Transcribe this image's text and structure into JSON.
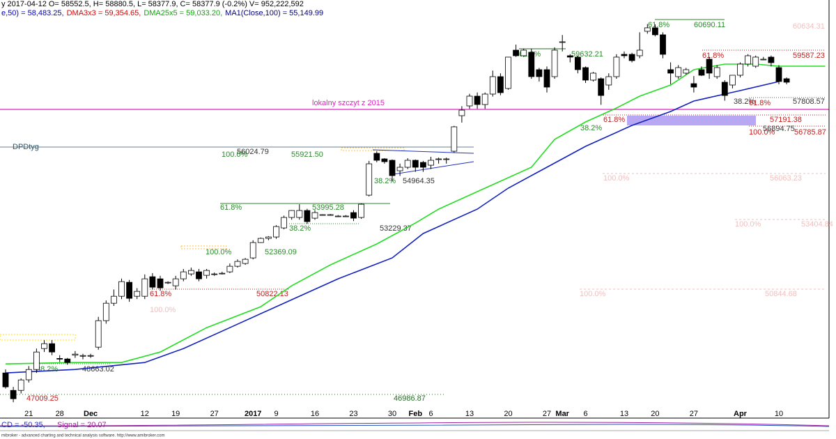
{
  "header": {
    "line1": "y 2017-04-12 O= 58552.5, H= 58880.5, L= 58377.9, C= 58377.9 (-0.2%) V= 952,222,592",
    "line2": [
      {
        "text": "e,50) = 58,483.25,",
        "color": "#0000c0"
      },
      {
        "text": "DMA3x3 = 59,354.65,",
        "color": "#e00000"
      },
      {
        "text": "DMA25x5 = 59,033.20,",
        "color": "#00b000"
      },
      {
        "text": "MA1(Close,100) = 55,149.99",
        "color": "#000080"
      }
    ]
  },
  "chart_data": {
    "type": "candlestick",
    "categories": [
      null,
      null,
      null,
      "21",
      null,
      null,
      null,
      "28",
      null,
      null,
      null,
      "Dec",
      null,
      null,
      null,
      null,
      null,
      null,
      "12",
      null,
      null,
      null,
      "19",
      null,
      null,
      null,
      null,
      "27",
      null,
      null,
      null,
      null,
      "2017",
      null,
      null,
      "9",
      null,
      null,
      null,
      null,
      "16",
      null,
      null,
      null,
      null,
      "23",
      null,
      null,
      null,
      null,
      "30",
      null,
      null,
      "Feb",
      null,
      "6",
      null,
      null,
      null,
      null,
      "13",
      null,
      null,
      null,
      null,
      "20",
      null,
      null,
      null,
      null,
      "27",
      null,
      "Mar",
      null,
      null,
      "6",
      null,
      null,
      null,
      null,
      "13",
      null,
      null,
      null,
      "20",
      null,
      null,
      null,
      null,
      "27",
      null,
      null,
      null,
      null,
      null,
      "Apr",
      null,
      null,
      null,
      null,
      "10",
      null
    ],
    "open": [
      47950,
      47313,
      47313,
      47700,
      48077,
      48842,
      49020,
      48480,
      48460,
      48600,
      48560,
      48580,
      48893,
      49861,
      50498,
      50753,
      51263,
      50753,
      50753,
      51467,
      51390,
      51263,
      51135,
      51390,
      51569,
      51645,
      51518,
      51569,
      51594,
      51645,
      51849,
      51951,
      52154,
      52715,
      52868,
      52919,
      53250,
      53633,
      53633,
      53887,
      53607,
      53735,
      53735,
      53684,
      53684,
      53811,
      53633,
      54448,
      55976,
      55773,
      55722,
      55340,
      55467,
      55722,
      55645,
      55543,
      55773,
      55773,
      56053,
      57352,
      57709,
      58066,
      57760,
      58142,
      58779,
      58346,
      59747,
      59543,
      59671,
      59034,
      59034,
      58779,
      60053,
      59543,
      59493,
      59110,
      58652,
      58703,
      58473,
      58779,
      59594,
      59594,
      59543,
      60436,
      60563,
      60308,
      59034,
      58779,
      58907,
      58524,
      59034,
      59416,
      58779,
      58575,
      58473,
      58830,
      59238,
      59161,
      59416,
      59493,
      59110,
      58703
    ],
    "high": [
      48080,
      47440,
      47750,
      48200,
      48842,
      49150,
      49150,
      48600,
      48500,
      48750,
      48650,
      48650,
      50000,
      50600,
      51000,
      51400,
      51350,
      51050,
      51550,
      51600,
      51500,
      51300,
      51500,
      51750,
      51800,
      51750,
      51750,
      51620,
      51650,
      51950,
      52100,
      52150,
      52800,
      52900,
      52950,
      53350,
      53700,
      53900,
      54116,
      53950,
      53900,
      53750,
      53760,
      53720,
      53720,
      53900,
      54150,
      55700,
      56050,
      55800,
      55750,
      55600,
      55800,
      55750,
      55700,
      55850,
      55820,
      55820,
      56980,
      57700,
      58150,
      58200,
      58200,
      59000,
      58900,
      59500,
      59950,
      59800,
      59800,
      59100,
      59150,
      59850,
      60300,
      59600,
      59550,
      59150,
      58950,
      58750,
      58900,
      59600,
      59700,
      59650,
      60400,
      60700,
      60690,
      60400,
      59300,
      59200,
      59100,
      58800,
      59150,
      59500,
      59200,
      58650,
      58800,
      59300,
      59600,
      59550,
      59500,
      59550,
      59200,
      58750
    ],
    "low": [
      47380,
      46880,
      47200,
      47600,
      47950,
      48715,
      48600,
      48350,
      48250,
      48500,
      48450,
      48500,
      48800,
      49750,
      50400,
      50650,
      50550,
      50650,
      50650,
      51000,
      50950,
      51200,
      51000,
      51300,
      51500,
      51300,
      51400,
      51500,
      51550,
      51600,
      51800,
      51900,
      52100,
      52700,
      52800,
      52850,
      53200,
      53550,
      53550,
      53400,
      53550,
      53700,
      53700,
      53650,
      53650,
      53500,
      53580,
      54400,
      55650,
      55600,
      54950,
      55150,
      55400,
      55300,
      55300,
      55400,
      55600,
      55600,
      56000,
      57100,
      57600,
      57600,
      57600,
      58050,
      58100,
      58300,
      59500,
      59500,
      58700,
      58600,
      58200,
      58700,
      59700,
      59300,
      58900,
      58550,
      58600,
      57750,
      58300,
      58700,
      59450,
      59300,
      59450,
      60350,
      60250,
      59450,
      58500,
      58700,
      58850,
      58200,
      58800,
      58700,
      58700,
      57900,
      58350,
      58750,
      59150,
      59100,
      59380,
      59150,
      58500,
      58500
    ],
    "close": [
      47441,
      47007,
      47695,
      48077,
      48715,
      49020,
      48715,
      48460,
      48332,
      48638,
      48587,
      48587,
      49861,
      50498,
      50753,
      51288,
      50677,
      50931,
      51390,
      51084,
      51059,
      51263,
      51390,
      51645,
      51696,
      51390,
      51696,
      51569,
      51594,
      51849,
      52027,
      52104,
      52715,
      52868,
      52919,
      53301,
      53633,
      53887,
      53887,
      53480,
      53811,
      53735,
      53735,
      53684,
      53684,
      53607,
      54116,
      55594,
      55722,
      55671,
      55161,
      55467,
      55722,
      55467,
      55467,
      55722,
      55773,
      55773,
      56945,
      57556,
      58066,
      57760,
      58142,
      58779,
      58193,
      59493,
      59543,
      59747,
      58779,
      58779,
      58397,
      59747,
      60053,
      59493,
      59034,
      58652,
      58907,
      58091,
      58779,
      59493,
      59543,
      59365,
      59747,
      60563,
      60308,
      59594,
      58907,
      59110,
      59034,
      58397,
      58830,
      58907,
      59110,
      58091,
      58830,
      59238,
      59543,
      59493,
      59416,
      59289,
      58601,
      58575
    ],
    "ylim": [
      46300,
      61580
    ],
    "up_color": "#ffffff",
    "down_color": "#000000",
    "lines": [
      {
        "color": "#22dd22",
        "x": [
          0,
          9,
          15,
          20,
          26,
          33,
          37,
          42,
          48,
          53,
          56,
          62,
          68,
          71,
          75,
          79,
          82,
          86,
          89,
          93,
          97,
          100,
          106
        ],
        "values": [
          48282,
          48332,
          48332,
          48715,
          49606,
          50371,
          51135,
          51900,
          52664,
          53429,
          53938,
          54703,
          55467,
          56486,
          57123,
          57633,
          58066,
          58473,
          59034,
          59238,
          59238,
          59161,
          59161
        ]
      },
      {
        "color": "#1020c0",
        "x": [
          0,
          9,
          18,
          23,
          29,
          37,
          43,
          50,
          54,
          61,
          65,
          70,
          75,
          81,
          86,
          89,
          95,
          100
        ],
        "values": [
          47950,
          48077,
          48332,
          48842,
          49606,
          50626,
          51390,
          52154,
          53046,
          53938,
          54703,
          55467,
          56231,
          56996,
          57505,
          57888,
          58270,
          58601
        ]
      }
    ],
    "annotations": [
      {
        "text": "61.8%",
        "color": "#2a8a2a"
      },
      {
        "text": "60690.11",
        "color": "#2a8a2a"
      },
      {
        "text": "60634.31",
        "color": "#f0c0c0"
      },
      {
        "text": "61.8%",
        "color": "#2a8a2a"
      },
      {
        "text": "59632.21",
        "color": "#2a8a2a"
      },
      {
        "text": "61.8%",
        "color": "#c02020"
      },
      {
        "text": "59587.23",
        "color": "#c02020"
      },
      {
        "text": "lokalny szczyt z 2015",
        "color": "#e020c0"
      },
      {
        "text": "38.2%",
        "color": "#333333"
      },
      {
        "text": "61.8%",
        "color": "#c02020"
      },
      {
        "text": "57808.57",
        "color": "#333333"
      },
      {
        "text": "61.8%",
        "color": "#c02020"
      },
      {
        "text": "57191.38",
        "color": "#c02020"
      },
      {
        "text": "38.2%",
        "color": "#2a8a2a"
      },
      {
        "text": "56894.75",
        "color": "#333333"
      },
      {
        "text": "100.0%",
        "color": "#c02020"
      },
      {
        "text": "56785.87",
        "color": "#c02020"
      },
      {
        "text": "DPDtyg",
        "color": "#335566"
      },
      {
        "text": "100.0%",
        "color": "#2a8a2a"
      },
      {
        "text": "56024.79",
        "color": "#333333"
      },
      {
        "text": "55921.50",
        "color": "#2a8a2a"
      },
      {
        "text": "38.2%",
        "color": "#2a8a2a"
      },
      {
        "text": "54964.35",
        "color": "#333333"
      },
      {
        "text": "100.0%",
        "color": "#f0c0c0"
      },
      {
        "text": "56063.23",
        "color": "#f0c0c0"
      },
      {
        "text": "61.8%",
        "color": "#2a8a2a"
      },
      {
        "text": "53995.28",
        "color": "#2a8a2a"
      },
      {
        "text": "38.2%",
        "color": "#2a8a2a"
      },
      {
        "text": "53229.37",
        "color": "#333333"
      },
      {
        "text": "100.0%",
        "color": "#f0c0c0"
      },
      {
        "text": "53404.84",
        "color": "#f0c0c0"
      },
      {
        "text": "100.0%",
        "color": "#2a8a2a"
      },
      {
        "text": "52369.09",
        "color": "#2a8a2a"
      },
      {
        "text": "61.8%",
        "color": "#c02020"
      },
      {
        "text": "50822.13",
        "color": "#c02020"
      },
      {
        "text": "100.0%",
        "color": "#f0c0c0"
      },
      {
        "text": "100.0%",
        "color": "#f0c0c0"
      },
      {
        "text": "50844.68",
        "color": "#f0c0c0"
      },
      {
        "text": "38.2%",
        "color": "#2a8a2a"
      },
      {
        "text": "48663.02",
        "color": "#333333"
      },
      {
        "text": "47009.25",
        "color": "#c02020"
      },
      {
        "text": "46986.87",
        "color": "#2a6a2a"
      }
    ]
  },
  "indicator": {
    "macd": "CD = -50.35,",
    "signal": "Signal = 20.07"
  },
  "footer": "mibroker - advanced charting and technical analysis software. http://www.amibroker.com"
}
